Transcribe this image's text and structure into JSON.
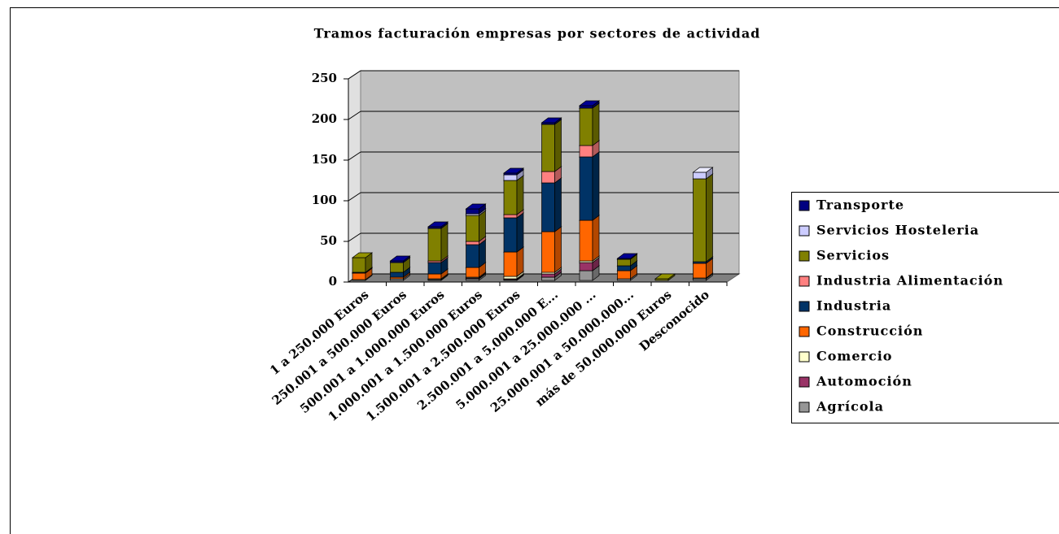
{
  "chart_data": {
    "type": "bar3d_stacked",
    "title": "Tramos facturación empresas por sectores de actividad",
    "categories": [
      "1 a 250.000 Euros",
      "250.001 a 500.000 Euros",
      "500.001 a 1.000.000 Euros",
      "1.000.001 a 1.500.000 Euros",
      "1.500.001 a 2.500.000 Euros",
      "2.500.001 a 5.000.000 E...",
      "5.000.001 a 25.000.000 ...",
      "25.000.001 a 50.000.000...",
      "más de 50.000.000 Euros",
      "Desconocido"
    ],
    "series": [
      {
        "name": "Agrícola",
        "color": "#969696",
        "values": [
          0,
          2,
          1,
          2,
          1,
          4,
          12,
          2,
          0,
          2
        ]
      },
      {
        "name": "Automoción",
        "color": "#993366",
        "values": [
          0,
          0,
          0,
          1,
          1,
          4,
          10,
          0,
          0,
          0
        ]
      },
      {
        "name": "Comercio",
        "color": "#ffffcc",
        "values": [
          1,
          0,
          1,
          1,
          3,
          2,
          2,
          0,
          0,
          1
        ]
      },
      {
        "name": "Construcción",
        "color": "#ff6600",
        "values": [
          8,
          2,
          6,
          12,
          30,
          50,
          50,
          10,
          0,
          18
        ]
      },
      {
        "name": "Industria",
        "color": "#003366",
        "values": [
          1,
          6,
          14,
          28,
          42,
          60,
          78,
          6,
          0,
          2
        ]
      },
      {
        "name": "Industria Alimentación",
        "color": "#ff8080",
        "values": [
          0,
          0,
          2,
          4,
          4,
          14,
          14,
          0,
          0,
          0
        ]
      },
      {
        "name": "Servicios",
        "color": "#808000",
        "values": [
          18,
          12,
          40,
          32,
          42,
          58,
          46,
          8,
          2,
          102
        ]
      },
      {
        "name": "Servicios Hosteleria",
        "color": "#ccccff",
        "values": [
          0,
          0,
          0,
          2,
          7,
          0,
          0,
          0,
          0,
          8
        ]
      },
      {
        "name": "Transporte",
        "color": "#000080",
        "values": [
          0,
          2,
          2,
          6,
          2,
          2,
          3,
          1,
          0,
          0
        ]
      }
    ],
    "ylim": [
      0,
      250
    ],
    "yticks": [
      0,
      50,
      100,
      150,
      200,
      250
    ],
    "grid": true,
    "legend": "right"
  }
}
